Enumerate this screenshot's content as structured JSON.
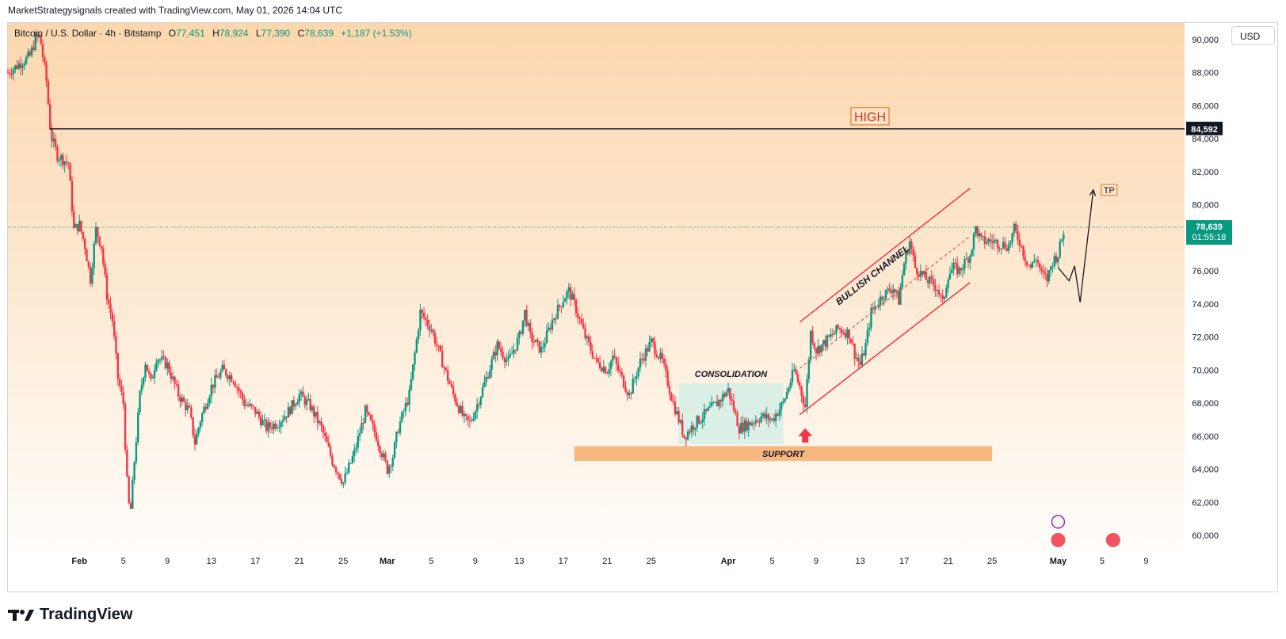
{
  "header": {
    "attribution": "MarketStrategysignals created with TradingView.com, May 01, 2026 14:04 UTC"
  },
  "symbol": {
    "name": "Bitcoin / U.S. Dollar · 4h · Bitstamp",
    "o_label": "O",
    "o_value": "77,451",
    "h_label": "H",
    "h_value": "78,924",
    "l_label": "L",
    "l_value": "77,390",
    "c_label": "C",
    "c_value": "78,639",
    "change": "+1,187 (+1.53%)"
  },
  "currency": "USD",
  "footer": {
    "brand": "TradingView"
  },
  "colors": {
    "up": "#089981",
    "down": "#f23645",
    "bg_top": "#fcd8b0",
    "bg_bottom": "#fffdfa",
    "support": "#f7b880",
    "consolidation": "#d6efe6",
    "channel": "#f23645"
  },
  "chart_data": {
    "type": "candlestick",
    "symbol": "BTCUSD",
    "timeframe": "4h",
    "ylim": [
      59000,
      91000
    ],
    "y_ticks": [
      60000,
      62000,
      64000,
      66000,
      68000,
      70000,
      72000,
      74000,
      76000,
      78000,
      80000,
      82000,
      84000,
      86000,
      88000,
      90000
    ],
    "y_tick_labels": [
      "60,000",
      "62,000",
      "64,000",
      "66,000",
      "68,000",
      "70,000",
      "72,000",
      "74,000",
      "76,000",
      "78,000",
      "80,000",
      "82,000",
      "84,000",
      "86,000",
      "88,000",
      "90,000"
    ],
    "x_ticks": [
      {
        "label": "Feb",
        "day": 0
      },
      {
        "label": "5",
        "day": 4
      },
      {
        "label": "9",
        "day": 8
      },
      {
        "label": "13",
        "day": 12
      },
      {
        "label": "17",
        "day": 16
      },
      {
        "label": "21",
        "day": 20
      },
      {
        "label": "25",
        "day": 24
      },
      {
        "label": "Mar",
        "day": 28
      },
      {
        "label": "5",
        "day": 32
      },
      {
        "label": "9",
        "day": 36
      },
      {
        "label": "13",
        "day": 40
      },
      {
        "label": "17",
        "day": 44
      },
      {
        "label": "21",
        "day": 48
      },
      {
        "label": "25",
        "day": 52
      },
      {
        "label": "Apr",
        "day": 59
      },
      {
        "label": "5",
        "day": 63
      },
      {
        "label": "9",
        "day": 67
      },
      {
        "label": "13",
        "day": 71
      },
      {
        "label": "17",
        "day": 75
      },
      {
        "label": "21",
        "day": 79
      },
      {
        "label": "25",
        "day": 83
      },
      {
        "label": "May",
        "day": 89
      },
      {
        "label": "5",
        "day": 93
      },
      {
        "label": "9",
        "day": 97
      }
    ],
    "x_range_days": [
      -6.5,
      100.5
    ],
    "price_path": [
      [
        -6.5,
        88000
      ],
      [
        -5.5,
        88500
      ],
      [
        -4.5,
        89000
      ],
      [
        -4,
        90000
      ],
      [
        -3.6,
        90200
      ],
      [
        -3,
        87500
      ],
      [
        -2.6,
        84200
      ],
      [
        -2,
        83000
      ],
      [
        -1,
        82500
      ],
      [
        -0.5,
        78500
      ],
      [
        0,
        78800
      ],
      [
        0.5,
        77500
      ],
      [
        1,
        75500
      ],
      [
        1.5,
        78500
      ],
      [
        2,
        77500
      ],
      [
        2.5,
        74500
      ],
      [
        3,
        73000
      ],
      [
        3.5,
        69500
      ],
      [
        4,
        68000
      ],
      [
        4.3,
        63500
      ],
      [
        4.6,
        61000
      ],
      [
        5,
        64500
      ],
      [
        5.5,
        68500
      ],
      [
        6,
        70500
      ],
      [
        6.5,
        69200
      ],
      [
        7,
        70800
      ],
      [
        8,
        70300
      ],
      [
        9,
        68500
      ],
      [
        10,
        67500
      ],
      [
        10.5,
        65600
      ],
      [
        11,
        67000
      ],
      [
        12,
        69000
      ],
      [
        13,
        70000
      ],
      [
        14,
        69500
      ],
      [
        15,
        68000
      ],
      [
        16,
        67500
      ],
      [
        17,
        66500
      ],
      [
        18,
        66800
      ],
      [
        19,
        67500
      ],
      [
        20,
        68500
      ],
      [
        21,
        67800
      ],
      [
        22,
        66500
      ],
      [
        23,
        64500
      ],
      [
        24,
        63200
      ],
      [
        25,
        65000
      ],
      [
        26,
        67500
      ],
      [
        27,
        66000
      ],
      [
        28,
        64000
      ],
      [
        28.5,
        64800
      ],
      [
        29,
        66500
      ],
      [
        30,
        68500
      ],
      [
        30.5,
        71000
      ],
      [
        31,
        73500
      ],
      [
        32,
        72500
      ],
      [
        33,
        70500
      ],
      [
        34,
        68500
      ],
      [
        35,
        67000
      ],
      [
        35.5,
        66800
      ],
      [
        36,
        67600
      ],
      [
        37,
        69500
      ],
      [
        38,
        71500
      ],
      [
        39,
        70500
      ],
      [
        40,
        72000
      ],
      [
        40.5,
        73500
      ],
      [
        41,
        72000
      ],
      [
        42,
        71200
      ],
      [
        43,
        73000
      ],
      [
        44,
        74300
      ],
      [
        44.5,
        74800
      ],
      [
        45,
        74000
      ],
      [
        46,
        72000
      ],
      [
        47,
        70500
      ],
      [
        48,
        70000
      ],
      [
        48.5,
        70800
      ],
      [
        49,
        70000
      ],
      [
        50,
        68500
      ],
      [
        51,
        70500
      ],
      [
        52,
        71700
      ],
      [
        53,
        70500
      ],
      [
        54,
        68000
      ],
      [
        55,
        66000
      ],
      [
        56,
        66800
      ],
      [
        57,
        67400
      ],
      [
        58,
        68000
      ],
      [
        59,
        68800
      ],
      [
        60,
        66500
      ],
      [
        61,
        66800
      ],
      [
        62,
        67200
      ],
      [
        63,
        67000
      ],
      [
        64,
        68000
      ],
      [
        65,
        70000
      ],
      [
        65.5,
        69000
      ],
      [
        66,
        67800
      ],
      [
        66.5,
        72300
      ],
      [
        67,
        71200
      ],
      [
        68,
        71800
      ],
      [
        69,
        72500
      ],
      [
        70,
        72200
      ],
      [
        70.5,
        71000
      ],
      [
        71,
        70300
      ],
      [
        71.5,
        71500
      ],
      [
        72,
        73500
      ],
      [
        73,
        74500
      ],
      [
        74,
        75000
      ],
      [
        74.5,
        74200
      ],
      [
        75,
        76500
      ],
      [
        75.5,
        77800
      ],
      [
        76,
        76200
      ],
      [
        77,
        75500
      ],
      [
        78,
        75000
      ],
      [
        78.5,
        74000
      ],
      [
        79,
        75800
      ],
      [
        79.5,
        76200
      ],
      [
        80,
        76000
      ],
      [
        81,
        77000
      ],
      [
        81.5,
        78600
      ],
      [
        82,
        77800
      ],
      [
        83,
        77800
      ],
      [
        84,
        77600
      ],
      [
        84.5,
        77500
      ],
      [
        85,
        78500
      ],
      [
        85.5,
        77800
      ],
      [
        86,
        76800
      ],
      [
        86.5,
        76200
      ],
      [
        87,
        76800
      ],
      [
        87.5,
        75800
      ],
      [
        88,
        75500
      ],
      [
        88.5,
        76600
      ],
      [
        89,
        77000
      ],
      [
        89.6,
        78700
      ]
    ],
    "annotations": {
      "high_level": 84592,
      "high_label": "HIGH",
      "high_price_label": "84,592",
      "current_price": 78639,
      "current_price_label": "78,639",
      "countdown": "01:55:18",
      "support_zone": {
        "from_day": 45,
        "to_day": 83,
        "low": 64500,
        "high": 65400,
        "label": "SUPPORT"
      },
      "consolidation_zone": {
        "from_day": 54.5,
        "to_day": 64,
        "low": 65500,
        "high": 69200,
        "label": "CONSOLIDATION"
      },
      "channel": {
        "label": "BULLISH CHANNEL",
        "upper": [
          [
            65.5,
            72900
          ],
          [
            81,
            81000
          ]
        ],
        "lower": [
          [
            65.5,
            67300
          ],
          [
            81,
            75300
          ]
        ],
        "mid": [
          [
            65.5,
            70100
          ],
          [
            81,
            78100
          ]
        ]
      },
      "projection": [
        [
          89,
          76200
        ],
        [
          90,
          75400
        ],
        [
          90.5,
          76300
        ],
        [
          91,
          74100
        ],
        [
          92.2,
          80900
        ]
      ],
      "tp_label": "TP",
      "buy_arrow_day": 66
    }
  }
}
